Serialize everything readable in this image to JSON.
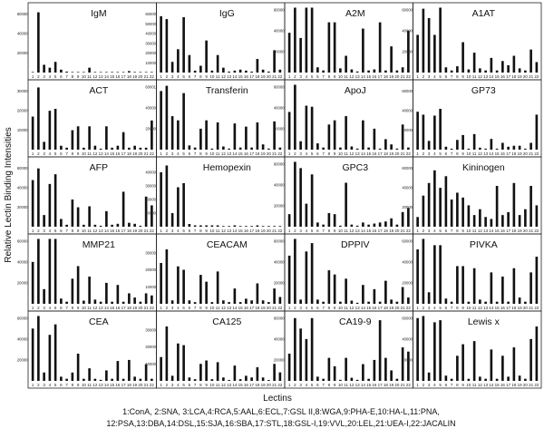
{
  "figure": {
    "ylabel": "Relative Lectin Binding Intensities",
    "xlabel": "Lectins",
    "legend_lines": [
      "1:ConA, 2:SNA, 3:LCA,4:RCA,5:AAL,6:ECL,7:GSL II,8:WGA,9:PHA-E,10:HA-L,11:PNA,",
      "12:PSA,13:DBA,14:DSL,15:SJA,16:SBA,17:STL,18:GSL-I,19:VVL,20:LEL,21:UEA-I,22:JACALIN"
    ]
  },
  "chart_data": [
    {
      "type": "bar",
      "title": "IgM",
      "categories": [
        "1",
        "2",
        "3",
        "4",
        "5",
        "6",
        "7",
        "8",
        "9",
        "10",
        "11",
        "12",
        "13",
        "14",
        "15",
        "16",
        "17",
        "18",
        "19",
        "20",
        "21",
        "22"
      ],
      "ylim": [
        0,
        70000
      ],
      "yticks": [
        "20000",
        "40000",
        "60000"
      ],
      "values": [
        0,
        62000,
        8000,
        5000,
        11000,
        3000,
        1000,
        500,
        300,
        200,
        5000,
        400,
        300,
        200,
        100,
        200,
        100,
        1500,
        100,
        100,
        100,
        200
      ]
    },
    {
      "type": "bar",
      "title": "IgG",
      "categories": [
        "1",
        "2",
        "3",
        "4",
        "5",
        "6",
        "7",
        "8",
        "9",
        "10",
        "11",
        "12",
        "13",
        "14",
        "15",
        "16",
        "17",
        "18",
        "19",
        "20",
        "21",
        "22"
      ],
      "ylim": [
        0,
        70000
      ],
      "yticks": [
        "10000",
        "20000",
        "30000",
        "40000",
        "50000",
        "60000",
        "70000"
      ],
      "values": [
        58000,
        55000,
        11000,
        24000,
        57000,
        18000,
        2000,
        7000,
        33000,
        2000,
        18000,
        5000,
        1000,
        2000,
        3000,
        2000,
        1000,
        14000,
        3000,
        1000,
        23000,
        3000
      ]
    },
    {
      "type": "bar",
      "title": "A2M",
      "categories": [
        "1",
        "2",
        "3",
        "4",
        "5",
        "6",
        "7",
        "8",
        "9",
        "10",
        "11",
        "12",
        "13",
        "14",
        "15",
        "16",
        "17",
        "18",
        "19",
        "20",
        "21",
        "22"
      ],
      "ylim": [
        0,
        65000
      ],
      "yticks": [
        "20000",
        "40000",
        "60000"
      ],
      "values": [
        38000,
        62000,
        33000,
        62000,
        62000,
        5000,
        2000,
        48000,
        48000,
        4000,
        16000,
        3000,
        1000,
        42000,
        2000,
        3000,
        48000,
        2000,
        25000,
        2000,
        5000,
        40000
      ]
    },
    {
      "type": "bar",
      "title": "A1AT",
      "categories": [
        "1",
        "2",
        "3",
        "4",
        "5",
        "6",
        "7",
        "8",
        "9",
        "10",
        "11",
        "12",
        "13",
        "14",
        "15",
        "16",
        "17",
        "18",
        "19",
        "20",
        "21",
        "22"
      ],
      "ylim": [
        0,
        65000
      ],
      "yticks": [
        "20000",
        "40000",
        "60000"
      ],
      "values": [
        36000,
        61000,
        52000,
        36000,
        62000,
        5000,
        2000,
        6000,
        29000,
        3000,
        19000,
        4000,
        2000,
        14000,
        2000,
        11000,
        7000,
        16000,
        4000,
        2000,
        22000,
        10000
      ]
    },
    {
      "type": "bar",
      "title": "ACT",
      "categories": [
        "1",
        "2",
        "3",
        "4",
        "5",
        "6",
        "7",
        "8",
        "9",
        "10",
        "11",
        "12",
        "13",
        "14",
        "15",
        "16",
        "17",
        "18",
        "19",
        "20",
        "21",
        "22"
      ],
      "ylim": [
        0,
        35000
      ],
      "yticks": [
        "10000",
        "20000",
        "30000"
      ],
      "values": [
        17000,
        32000,
        4000,
        20000,
        21000,
        2000,
        1000,
        10000,
        12000,
        1000,
        12000,
        2000,
        500,
        12000,
        1000,
        2000,
        9000,
        1000,
        2000,
        1000,
        1000,
        15000
      ]
    },
    {
      "type": "bar",
      "title": "Transferin",
      "categories": [
        "1",
        "2",
        "3",
        "4",
        "5",
        "6",
        "7",
        "8",
        "9",
        "10",
        "11",
        "12",
        "13",
        "14",
        "15",
        "16",
        "17",
        "18",
        "19",
        "20",
        "21",
        "22"
      ],
      "ylim": [
        0,
        65000
      ],
      "yticks": [
        "20000",
        "40000",
        "60001"
      ],
      "values": [
        56000,
        61000,
        32000,
        28000,
        54000,
        4000,
        2000,
        20000,
        28000,
        1000,
        26000,
        3000,
        1000,
        25000,
        2000,
        22000,
        2000,
        26000,
        5000,
        1000,
        27000,
        2000
      ]
    },
    {
      "type": "bar",
      "title": "ApoJ",
      "categories": [
        "1",
        "2",
        "3",
        "4",
        "5",
        "6",
        "7",
        "8",
        "9",
        "10",
        "11",
        "12",
        "13",
        "14",
        "15",
        "16",
        "17",
        "18",
        "19",
        "20",
        "21",
        "22"
      ],
      "ylim": [
        0,
        65000
      ],
      "yticks": [
        "20000",
        "40000",
        "60000"
      ],
      "values": [
        36000,
        62000,
        8000,
        42000,
        41000,
        6000,
        2000,
        24000,
        28000,
        2000,
        32000,
        3000,
        1000,
        28000,
        2000,
        20000,
        1000,
        10000,
        5000,
        1000,
        24000,
        2000
      ]
    },
    {
      "type": "bar",
      "title": "GP73",
      "categories": [
        "1",
        "2",
        "3",
        "4",
        "5",
        "6",
        "7",
        "8",
        "9",
        "10",
        "11",
        "12",
        "13",
        "14",
        "15",
        "16",
        "17",
        "18",
        "19",
        "20",
        "21",
        "22"
      ],
      "ylim": [
        0,
        70000
      ],
      "yticks": [
        "20000",
        "40000",
        "60000"
      ],
      "values": [
        39000,
        36000,
        9000,
        35000,
        42000,
        3000,
        1000,
        10000,
        15000,
        1000,
        16000,
        2000,
        1000,
        11000,
        1000,
        7000,
        3000,
        4000,
        4000,
        1000,
        7000,
        36000
      ]
    },
    {
      "type": "bar",
      "title": "AFP",
      "categories": [
        "1",
        "2",
        "3",
        "4",
        "5",
        "6",
        "7",
        "8",
        "9",
        "10",
        "11",
        "12",
        "13",
        "14",
        "15",
        "16",
        "17",
        "18",
        "19",
        "20",
        "21",
        "22"
      ],
      "ylim": [
        0,
        70000
      ],
      "yticks": [
        "20000",
        "40000",
        "60000"
      ],
      "values": [
        48000,
        60000,
        12000,
        44000,
        54000,
        8000,
        2000,
        28000,
        20000,
        2000,
        21000,
        2000,
        1000,
        16000,
        2000,
        3000,
        36000,
        4000,
        3000,
        1000,
        31000,
        22000
      ]
    },
    {
      "type": "bar",
      "title": "Hemopexin",
      "categories": [
        "1",
        "2",
        "3",
        "4",
        "5",
        "6",
        "7",
        "8",
        "9",
        "10",
        "11",
        "12",
        "13",
        "14",
        "15",
        "16",
        "17",
        "18",
        "19",
        "20",
        "21",
        "22"
      ],
      "ylim": [
        0,
        50000
      ],
      "yticks": [
        "10000",
        "20000",
        "30000",
        "40000"
      ],
      "values": [
        40000,
        45000,
        10000,
        29000,
        32000,
        2000,
        1000,
        1000,
        1000,
        1000,
        1000,
        500,
        500,
        1000,
        500,
        500,
        500,
        1000,
        500,
        500,
        500,
        500
      ]
    },
    {
      "type": "bar",
      "title": "GPC3",
      "categories": [
        "1",
        "2",
        "3",
        "4",
        "5",
        "6",
        "7",
        "8",
        "9",
        "10",
        "11",
        "12",
        "13",
        "14",
        "15",
        "16",
        "17",
        "18",
        "19",
        "20",
        "21",
        "22"
      ],
      "ylim": [
        0,
        65000
      ],
      "yticks": [
        "20000",
        "40000",
        "60000"
      ],
      "values": [
        12000,
        62000,
        56000,
        22000,
        50000,
        4000,
        2000,
        13000,
        12000,
        1000,
        42000,
        2000,
        1000,
        4000,
        2000,
        3000,
        4000,
        5000,
        8000,
        2000,
        14000,
        18000
      ]
    },
    {
      "type": "bar",
      "title": "Kininogen",
      "categories": [
        "1",
        "2",
        "3",
        "4",
        "5",
        "6",
        "7",
        "8",
        "9",
        "10",
        "11",
        "12",
        "13",
        "14",
        "15",
        "16",
        "17",
        "18",
        "19",
        "20",
        "21",
        "22"
      ],
      "ylim": [
        0,
        70000
      ],
      "yticks": [
        "20000",
        "40000",
        "60000"
      ],
      "values": [
        10000,
        32000,
        45000,
        58000,
        40000,
        52000,
        28000,
        35000,
        30000,
        22000,
        12000,
        18000,
        10000,
        8000,
        42000,
        12000,
        15000,
        45000,
        12000,
        18000,
        42000,
        22000
      ]
    },
    {
      "type": "bar",
      "title": "MMP21",
      "categories": [
        "1",
        "2",
        "3",
        "4",
        "5",
        "6",
        "7",
        "8",
        "9",
        "10",
        "11",
        "12",
        "13",
        "14",
        "15",
        "16",
        "17",
        "18",
        "19",
        "20",
        "21",
        "22"
      ],
      "ylim": [
        0,
        65000
      ],
      "yticks": [
        "20000",
        "40000",
        "60000"
      ],
      "values": [
        40000,
        62000,
        14000,
        62000,
        62000,
        5000,
        2000,
        24000,
        36000,
        3000,
        26000,
        4000,
        2000,
        20000,
        2000,
        18000,
        2000,
        10000,
        6000,
        2000,
        10000,
        8000
      ]
    },
    {
      "type": "bar",
      "title": "CEACAM",
      "categories": [
        "1",
        "2",
        "3",
        "4",
        "5",
        "6",
        "7",
        "8",
        "9",
        "10",
        "11",
        "12",
        "13",
        "14",
        "15",
        "16",
        "17",
        "18",
        "19",
        "20",
        "21",
        "22"
      ],
      "ylim": [
        0,
        40000
      ],
      "yticks": [
        "10000",
        "20000",
        "30000"
      ],
      "values": [
        24000,
        32000,
        2000,
        22000,
        20000,
        2000,
        1000,
        17000,
        13000,
        1000,
        19000,
        2000,
        1000,
        9000,
        1000,
        3000,
        2000,
        12000,
        2000,
        1000,
        9000,
        4000
      ]
    },
    {
      "type": "bar",
      "title": "DPPIV",
      "categories": [
        "1",
        "2",
        "3",
        "4",
        "5",
        "6",
        "7",
        "8",
        "9",
        "10",
        "11",
        "12",
        "13",
        "14",
        "15",
        "16",
        "17",
        "18",
        "19",
        "20",
        "21",
        "22"
      ],
      "ylim": [
        0,
        65000
      ],
      "yticks": [
        "20000",
        "40000",
        "60000"
      ],
      "values": [
        46000,
        62000,
        4000,
        50000,
        58000,
        4000,
        2000,
        32000,
        28000,
        2000,
        24000,
        3000,
        1000,
        18000,
        2000,
        14000,
        2000,
        22000,
        4000,
        2000,
        16000,
        6000
      ]
    },
    {
      "type": "bar",
      "title": "PIVKA",
      "categories": [
        "1",
        "2",
        "3",
        "4",
        "5",
        "6",
        "7",
        "8",
        "9",
        "10",
        "11",
        "12",
        "13",
        "14",
        "15",
        "16",
        "17",
        "18",
        "19",
        "20",
        "21",
        "22"
      ],
      "ylim": [
        0,
        65000
      ],
      "yticks": [
        "20000",
        "40000",
        "60000"
      ],
      "values": [
        52000,
        62000,
        11000,
        56000,
        56000,
        5000,
        2000,
        36000,
        36000,
        2000,
        34000,
        4000,
        2000,
        30000,
        2000,
        26000,
        2000,
        34000,
        6000,
        2000,
        30000,
        45000
      ]
    },
    {
      "type": "bar",
      "title": "CEA",
      "categories": [
        "1",
        "2",
        "3",
        "4",
        "5",
        "6",
        "7",
        "8",
        "9",
        "10",
        "11",
        "12",
        "13",
        "14",
        "15",
        "16",
        "17",
        "18",
        "19",
        "20",
        "21",
        "22"
      ],
      "ylim": [
        0,
        65000
      ],
      "yticks": [
        "20000",
        "40000",
        "60000"
      ],
      "values": [
        50000,
        62000,
        8000,
        44000,
        54000,
        4000,
        2000,
        8000,
        26000,
        2000,
        12000,
        2000,
        1000,
        10000,
        2000,
        19000,
        2000,
        20000,
        4000,
        2000,
        16000,
        2000
      ]
    },
    {
      "type": "bar",
      "title": "CA125",
      "categories": [
        "1",
        "2",
        "3",
        "4",
        "5",
        "6",
        "7",
        "8",
        "9",
        "10",
        "11",
        "12",
        "13",
        "14",
        "15",
        "16",
        "17",
        "18",
        "19",
        "20",
        "21",
        "22"
      ],
      "ylim": [
        0,
        40000
      ],
      "yticks": [
        "10000",
        "20000",
        "30000"
      ],
      "values": [
        14000,
        32000,
        3000,
        22000,
        21000,
        2000,
        1000,
        10000,
        12000,
        1000,
        11000,
        2000,
        500,
        9000,
        1000,
        3000,
        2000,
        8000,
        2000,
        500,
        10000,
        5000
      ]
    },
    {
      "type": "bar",
      "title": "CA19-9",
      "categories": [
        "1",
        "2",
        "3",
        "4",
        "5",
        "6",
        "7",
        "8",
        "9",
        "10",
        "11",
        "12",
        "13",
        "14",
        "15",
        "16",
        "17",
        "18",
        "19",
        "20",
        "21",
        "22"
      ],
      "ylim": [
        0,
        65000
      ],
      "yticks": [
        "20000",
        "40000",
        "60000"
      ],
      "values": [
        26000,
        60000,
        50000,
        40000,
        60000,
        4000,
        2000,
        22000,
        14000,
        1000,
        22000,
        3000,
        1000,
        16000,
        2000,
        20000,
        58000,
        22000,
        10000,
        2000,
        32000,
        28000
      ]
    },
    {
      "type": "bar",
      "title": "Lewis x",
      "categories": [
        "1",
        "2",
        "3",
        "4",
        "5",
        "6",
        "7",
        "8",
        "9",
        "10",
        "11",
        "12",
        "13",
        "14",
        "15",
        "16",
        "17",
        "18",
        "19",
        "20",
        "21",
        "22"
      ],
      "ylim": [
        0,
        65000
      ],
      "yticks": [
        "20000",
        "40000",
        "60000"
      ],
      "values": [
        60000,
        62000,
        8000,
        56000,
        58000,
        5000,
        2000,
        24000,
        35000,
        2000,
        38000,
        4000,
        2000,
        30000,
        2000,
        24000,
        4000,
        32000,
        5000,
        2000,
        40000,
        52000
      ]
    }
  ]
}
